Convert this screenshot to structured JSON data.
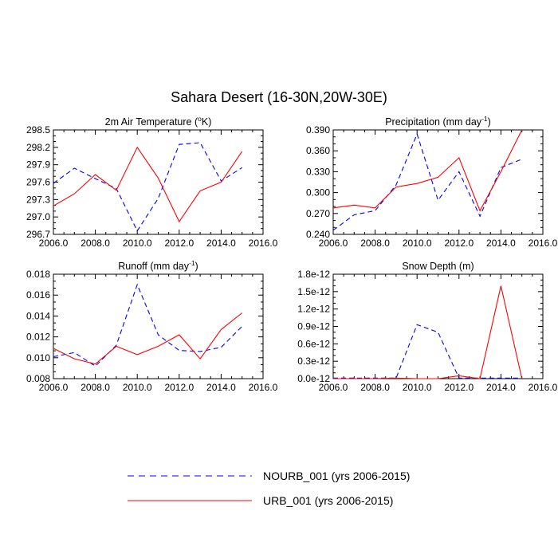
{
  "title": "Sahara Desert (16-30N,20W-30E)",
  "colors": {
    "nourb": "#0000ff",
    "urb": "#ff0000",
    "axis": "#000000"
  },
  "legend": [
    {
      "key": "nourb",
      "label": "NOURB_001 (yrs 2006-2015)",
      "dash": true
    },
    {
      "key": "urb",
      "label": "URB_001 (yrs 2006-2015)",
      "dash": false
    }
  ],
  "chart_data": [
    {
      "type": "line",
      "title": "2m Air Temperature (°K)",
      "title_parts": {
        "pre": "2m Air Temperature (",
        "sup": "o",
        "post": "K)"
      },
      "xlim": [
        2006,
        2016
      ],
      "xticks": [
        "2006.0",
        "2008.0",
        "2010.0",
        "2012.0",
        "2014.0",
        "2016.0"
      ],
      "ylim": [
        296.7,
        298.5
      ],
      "yticks": [
        "296.7",
        "297.0",
        "297.3",
        "297.6",
        "297.9",
        "298.2",
        "298.5"
      ],
      "x": [
        2006,
        2007,
        2008,
        2009,
        2010,
        2011,
        2012,
        2013,
        2014,
        2015
      ],
      "series": [
        {
          "name": "NOURB_001 (yrs 2006-2015)",
          "key": "nourb",
          "values": [
            297.58,
            297.84,
            297.66,
            297.49,
            296.76,
            297.32,
            298.25,
            298.28,
            297.62,
            297.85
          ]
        },
        {
          "name": "URB_001 (yrs 2006-2015)",
          "key": "urb",
          "values": [
            297.19,
            297.4,
            297.73,
            297.46,
            298.2,
            297.67,
            296.92,
            297.45,
            297.6,
            298.13
          ]
        }
      ]
    },
    {
      "type": "line",
      "title": "Precipitation (mm day-1)",
      "title_parts": {
        "pre": "Precipitation (mm day",
        "sup": "-1",
        "post": ")"
      },
      "xlim": [
        2006,
        2016
      ],
      "xticks": [
        "2006.0",
        "2008.0",
        "2010.0",
        "2012.0",
        "2014.0",
        "2016.0"
      ],
      "ylim": [
        0.24,
        0.39
      ],
      "yticks": [
        "0.240",
        "0.270",
        "0.300",
        "0.330",
        "0.360",
        "0.390"
      ],
      "x": [
        2006,
        2007,
        2008,
        2009,
        2010,
        2011,
        2012,
        2013,
        2014,
        2015
      ],
      "series": [
        {
          "name": "NOURB_001 (yrs 2006-2015)",
          "key": "nourb",
          "values": [
            0.246,
            0.268,
            0.274,
            0.311,
            0.384,
            0.289,
            0.33,
            0.266,
            0.336,
            0.348
          ]
        },
        {
          "name": "URB_001 (yrs 2006-2015)",
          "key": "urb",
          "values": [
            0.278,
            0.282,
            0.278,
            0.308,
            0.313,
            0.322,
            0.35,
            0.274,
            0.33,
            0.39
          ]
        }
      ]
    },
    {
      "type": "line",
      "title": "Runoff (mm day-1)",
      "title_parts": {
        "pre": "Runoff (mm day",
        "sup": "-1",
        "post": ")"
      },
      "xlim": [
        2006,
        2016
      ],
      "xticks": [
        "2006.0",
        "2008.0",
        "2010.0",
        "2012.0",
        "2014.0",
        "2016.0"
      ],
      "ylim": [
        0.008,
        0.018
      ],
      "yticks": [
        "0.008",
        "0.010",
        "0.012",
        "0.014",
        "0.016",
        "0.018"
      ],
      "x": [
        2006,
        2007,
        2008,
        2009,
        2010,
        2011,
        2012,
        2013,
        2014,
        2015
      ],
      "series": [
        {
          "name": "NOURB_001 (yrs 2006-2015)",
          "key": "nourb",
          "values": [
            0.0101,
            0.0105,
            0.0092,
            0.0112,
            0.017,
            0.0122,
            0.0107,
            0.0106,
            0.011,
            0.013
          ]
        },
        {
          "name": "URB_001 (yrs 2006-2015)",
          "key": "urb",
          "values": [
            0.0109,
            0.0099,
            0.0094,
            0.0111,
            0.0103,
            0.0111,
            0.0122,
            0.0099,
            0.0127,
            0.0143
          ]
        }
      ]
    },
    {
      "type": "line",
      "title": "Snow Depth (m)",
      "title_parts": {
        "pre": "Snow Depth (m)",
        "sup": "",
        "post": ""
      },
      "xlim": [
        2006,
        2016
      ],
      "xticks": [
        "2006.0",
        "2008.0",
        "2010.0",
        "2012.0",
        "2014.0",
        "2016.0"
      ],
      "ylim": [
        0,
        1.8e-12
      ],
      "yticks": [
        "0.0e-12",
        "0.3e-12",
        "0.6e-12",
        "0.9e-12",
        "1.2e-12",
        "1.5e-12",
        "1.8e-12"
      ],
      "x": [
        2006,
        2007,
        2008,
        2009,
        2010,
        2011,
        2012,
        2013,
        2014,
        2015
      ],
      "series": [
        {
          "name": "NOURB_001 (yrs 2006-2015)",
          "key": "nourb",
          "values": [
            1e-14,
            1e-14,
            1e-14,
            1e-14,
            9.3e-13,
            8e-13,
            1e-14,
            1e-14,
            1e-14,
            1e-14
          ]
        },
        {
          "name": "URB_001 (yrs 2006-2015)",
          "key": "urb",
          "values": [
            0.0,
            0.0,
            0.0,
            1e-14,
            0.0,
            0.0,
            5e-14,
            0.0,
            1.6e-12,
            0.0
          ]
        }
      ]
    }
  ]
}
